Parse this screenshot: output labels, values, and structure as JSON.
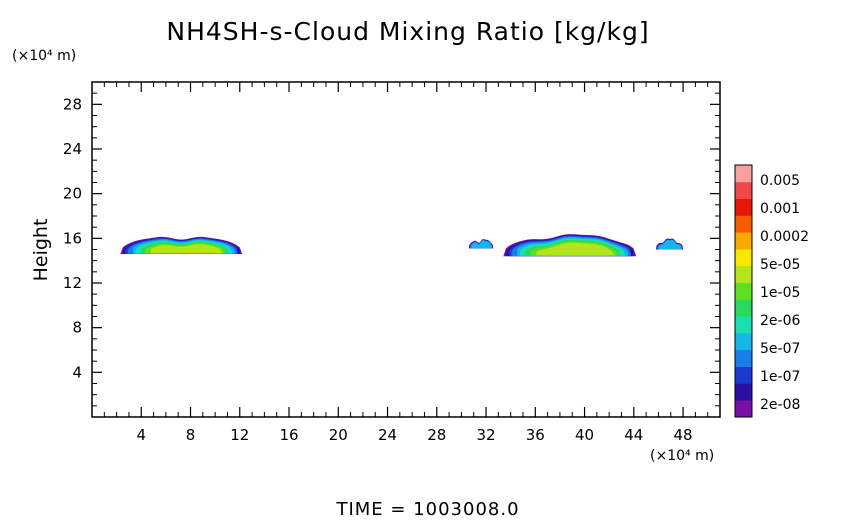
{
  "chart_data": {
    "type": "heatmap",
    "title": "NH4SH-s-Cloud Mixing Ratio [kg/kg]",
    "ylabel": "Height",
    "x_unit": "(×10⁴ m)",
    "y_unit": "(×10⁴ m)",
    "xlim": [
      0,
      51
    ],
    "ylim": [
      0,
      30
    ],
    "x_ticks": [
      4,
      8,
      12,
      16,
      20,
      24,
      28,
      32,
      36,
      40,
      44,
      48
    ],
    "y_ticks": [
      4,
      8,
      12,
      16,
      20,
      24,
      28
    ],
    "grid": false,
    "footer": "TIME = 1003008.0",
    "colorbar": {
      "labels": [
        "0.005",
        "0.001",
        "0.0002",
        "5e-05",
        "1e-05",
        "2e-06",
        "5e-07",
        "1e-07",
        "2e-08"
      ],
      "colors_bottom_to_top": [
        "#7a0fa8",
        "#2a10a0",
        "#1a3ad0",
        "#1a7ee8",
        "#13b6e6",
        "#19e0b4",
        "#2ad85a",
        "#5ee020",
        "#b6e41a",
        "#f6e800",
        "#f8a800",
        "#f85a00",
        "#e81808",
        "#f04848",
        "#f8a0a0"
      ]
    },
    "regions": [
      {
        "x_range": [
          2.3,
          12.2
        ],
        "y_bottom": 14.6,
        "y_top": 16.4,
        "peak": "5e-05"
      },
      {
        "x_range": [
          30.6,
          32.6
        ],
        "y_bottom": 15.1,
        "y_top": 16.1,
        "peak": "5e-07"
      },
      {
        "x_range": [
          33.4,
          44.2
        ],
        "y_bottom": 14.4,
        "y_top": 16.5,
        "peak": "5e-05"
      },
      {
        "x_range": [
          45.8,
          48.0
        ],
        "y_bottom": 15.0,
        "y_top": 16.1,
        "peak": "5e-07"
      }
    ]
  }
}
